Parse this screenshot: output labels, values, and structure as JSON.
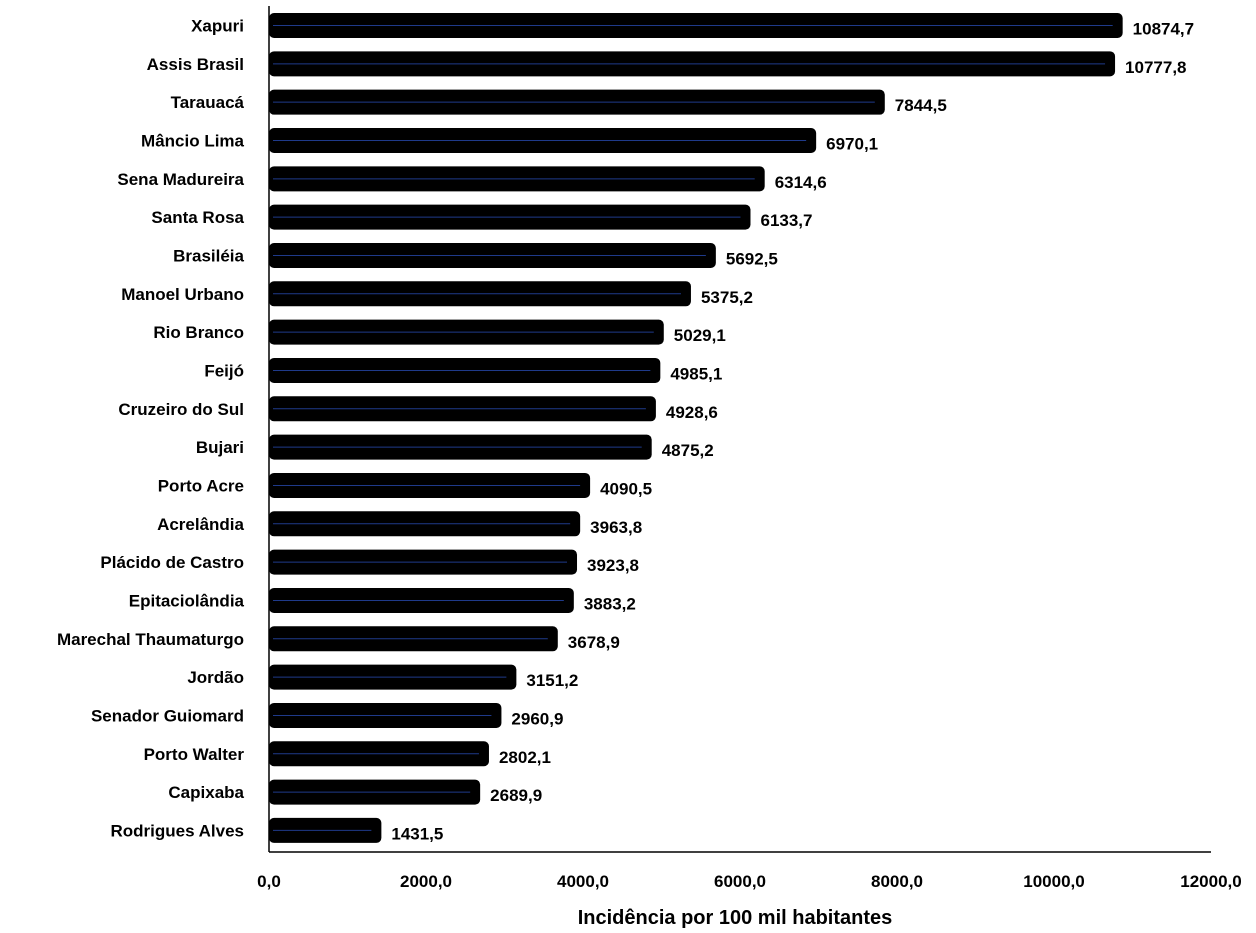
{
  "chart_data": {
    "type": "bar",
    "orientation": "horizontal",
    "categories": [
      "Xapuri",
      "Assis Brasil",
      "Tarauacá",
      "Mâncio Lima",
      "Sena Madureira",
      "Santa Rosa",
      "Brasiléia",
      "Manoel Urbano",
      "Rio Branco",
      "Feijó",
      "Cruzeiro do Sul",
      "Bujari",
      "Porto Acre",
      "Acrelândia",
      "Plácido de Castro",
      "Epitaciolândia",
      "Marechal Thaumaturgo",
      "Jordão",
      "Senador Guiomard",
      "Porto Walter",
      "Capixaba",
      "Rodrigues Alves"
    ],
    "values": [
      10874.7,
      10777.8,
      7844.5,
      6970.1,
      6314.6,
      6133.7,
      5692.5,
      5375.2,
      5029.1,
      4985.1,
      4928.6,
      4875.2,
      4090.5,
      3963.8,
      3923.8,
      3883.2,
      3678.9,
      3151.2,
      2960.9,
      2802.1,
      2689.9,
      1431.5
    ],
    "value_labels": [
      "10874,7",
      "10777,8",
      "7844,5",
      "6970,1",
      "6314,6",
      "6133,7",
      "5692,5",
      "5375,2",
      "5029,1",
      "4985,1",
      "4928,6",
      "4875,2",
      "4090,5",
      "3963,8",
      "3923,8",
      "3883,2",
      "3678,9",
      "3151,2",
      "2960,9",
      "2802,1",
      "2689,9",
      "1431,5"
    ],
    "xlabel": "Incidência por 100 mil habitantes",
    "xlim": [
      0,
      12000
    ],
    "x_ticks": [
      0,
      2000,
      4000,
      6000,
      8000,
      10000,
      12000
    ],
    "x_tick_labels": [
      "0,0",
      "2000,0",
      "4000,0",
      "6000,0",
      "8000,0",
      "10000,0",
      "12000,0"
    ],
    "grid": false,
    "legend": "none",
    "colors": {
      "bar": "#000000",
      "bar_line": "#1f3a8a"
    }
  }
}
